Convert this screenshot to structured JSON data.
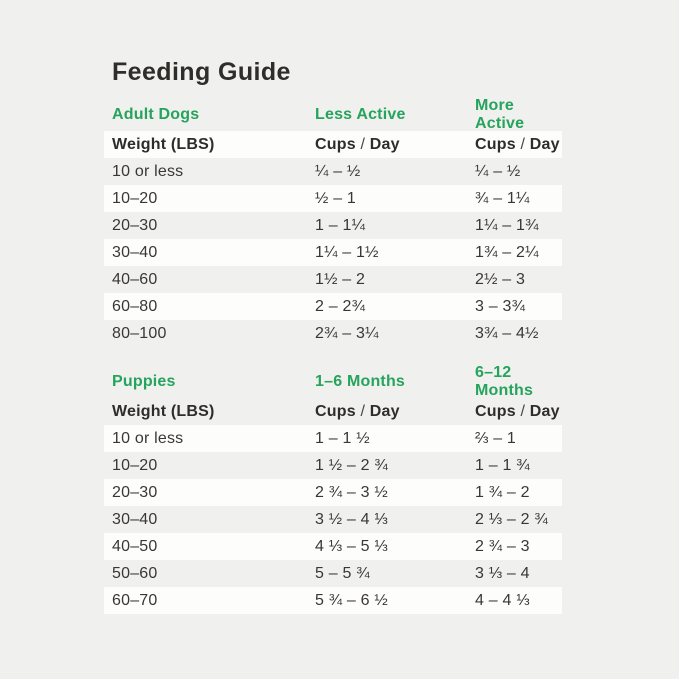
{
  "title": "Feeding Guide",
  "colors": {
    "background": "#f0f0ee",
    "row_highlight": "#fdfdfc",
    "accent_green": "#26a35c",
    "text_dark": "#2f2d2a"
  },
  "sections": [
    {
      "id": "adult-dogs",
      "heading": {
        "name": "Adult Dogs",
        "col2": "Less Active",
        "col3": "More Active"
      },
      "subheader": {
        "weight": "Weight (LBS)",
        "cups": "Cups",
        "slash": "/",
        "day": "Day"
      },
      "rows": [
        {
          "weight": "10 or less",
          "col2": "¼ – ½",
          "col3": "¼ – ½"
        },
        {
          "weight": "10–20",
          "col2": "½ – 1",
          "col3": "¾ – 1¼"
        },
        {
          "weight": "20–30",
          "col2": "1 – 1¼",
          "col3": "1¼ – 1¾"
        },
        {
          "weight": "30–40",
          "col2": "1¼ – 1½",
          "col3": "1¾ – 2¼"
        },
        {
          "weight": "40–60",
          "col2": "1½ – 2",
          "col3": "2½ – 3"
        },
        {
          "weight": "60–80",
          "col2": "2 – 2¾",
          "col3": "3 – 3¾"
        },
        {
          "weight": "80–100",
          "col2": "2¾ – 3¼",
          "col3": "3¾ – 4½"
        }
      ]
    },
    {
      "id": "puppies",
      "heading": {
        "name": "Puppies",
        "col2": "1–6 Months",
        "col3": "6–12 Months"
      },
      "subheader": {
        "weight": "Weight (LBS)",
        "cups": "Cups",
        "slash": "/",
        "day": "Day"
      },
      "rows": [
        {
          "weight": "10 or less",
          "col2": "1 – 1 ½",
          "col3": "⅔ – 1"
        },
        {
          "weight": "10–20",
          "col2": "1 ½ – 2 ¾",
          "col3": "1 – 1 ¾"
        },
        {
          "weight": "20–30",
          "col2": "2 ¾ – 3 ½",
          "col3": "1 ¾ – 2"
        },
        {
          "weight": "30–40",
          "col2": "3 ½ – 4 ⅓",
          "col3": "2 ⅓ – 2 ¾"
        },
        {
          "weight": "40–50",
          "col2": "4 ⅓ – 5 ⅓",
          "col3": "2 ¾ – 3"
        },
        {
          "weight": "50–60",
          "col2": "5 – 5 ¾",
          "col3": "3 ⅓ – 4"
        },
        {
          "weight": "60–70",
          "col2": "5 ¾ – 6 ½",
          "col3": "4 – 4 ⅓"
        }
      ]
    }
  ]
}
